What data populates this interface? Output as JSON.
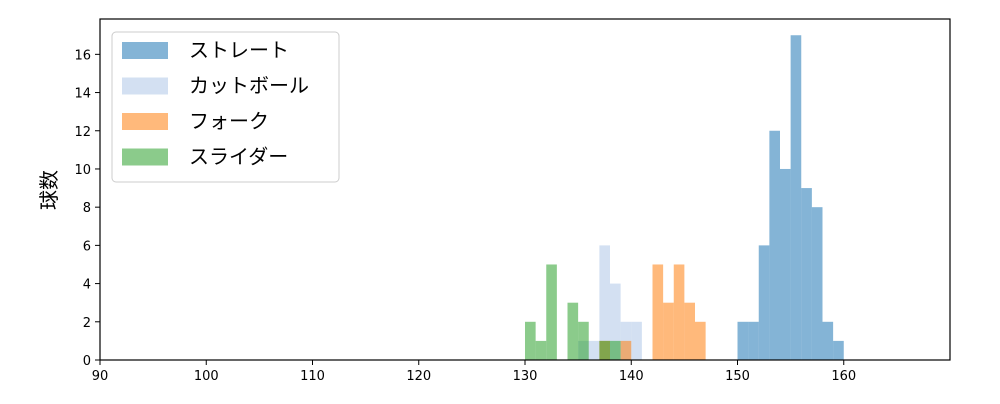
{
  "chart_data": {
    "type": "bar",
    "title": "",
    "xlabel": "",
    "ylabel": "球数",
    "xlim": [
      90,
      170
    ],
    "ylim": [
      0,
      17.85
    ],
    "xticks": [
      90,
      100,
      110,
      120,
      130,
      140,
      150,
      160
    ],
    "yticks": [
      0,
      2,
      4,
      6,
      8,
      10,
      12,
      14,
      16
    ],
    "bin_width": 1,
    "legend_position": "top-left",
    "grid": false,
    "series": [
      {
        "name": "ストレート",
        "color": "#1f77b4",
        "bins_start": [
          150,
          151,
          152,
          153,
          154,
          155,
          156,
          157,
          158,
          159
        ],
        "values": [
          2,
          2,
          6,
          12,
          10,
          17,
          9,
          8,
          2,
          1
        ]
      },
      {
        "name": "カットボール",
        "color": "#aec7e8",
        "bins_start": [
          135,
          136,
          137,
          138,
          139,
          140
        ],
        "values": [
          1,
          1,
          6,
          4,
          2,
          2
        ]
      },
      {
        "name": "フォーク",
        "color": "#ff7f0e",
        "bins_start": [
          137,
          139,
          142,
          143,
          144,
          145,
          146
        ],
        "values": [
          1,
          1,
          5,
          3,
          5,
          3,
          2
        ]
      },
      {
        "name": "スライダー",
        "color": "#2ca02c",
        "bins_start": [
          130,
          131,
          132,
          134,
          135,
          137,
          138
        ],
        "values": [
          2,
          1,
          5,
          3,
          2,
          1,
          1
        ]
      }
    ]
  }
}
